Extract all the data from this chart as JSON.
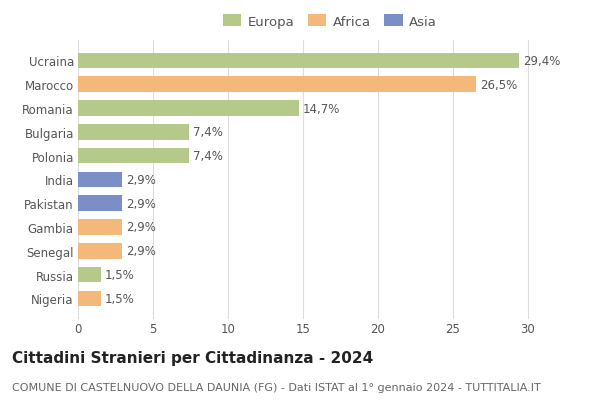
{
  "categories": [
    "Nigeria",
    "Russia",
    "Senegal",
    "Gambia",
    "Pakistan",
    "India",
    "Polonia",
    "Bulgaria",
    "Romania",
    "Marocco",
    "Ucraina"
  ],
  "values": [
    1.5,
    1.5,
    2.9,
    2.9,
    2.9,
    2.9,
    7.4,
    7.4,
    14.7,
    26.5,
    29.4
  ],
  "labels": [
    "1,5%",
    "1,5%",
    "2,9%",
    "2,9%",
    "2,9%",
    "2,9%",
    "7,4%",
    "7,4%",
    "14,7%",
    "26,5%",
    "29,4%"
  ],
  "colors": [
    "#f4b97a",
    "#b5c98a",
    "#f4b97a",
    "#f4b97a",
    "#7b8ec8",
    "#7b8ec8",
    "#b5c98a",
    "#b5c98a",
    "#b5c98a",
    "#f4b97a",
    "#b5c98a"
  ],
  "legend_labels": [
    "Europa",
    "Africa",
    "Asia"
  ],
  "legend_colors": [
    "#b5c98a",
    "#f4b97a",
    "#7b8ec8"
  ],
  "title": "Cittadini Stranieri per Cittadinanza - 2024",
  "subtitle": "COMUNE DI CASTELNUOVO DELLA DAUNIA (FG) - Dati ISTAT al 1° gennaio 2024 - TUTTITALIA.IT",
  "xlim": [
    0,
    32
  ],
  "xticks": [
    0,
    5,
    10,
    15,
    20,
    25,
    30
  ],
  "background_color": "#ffffff",
  "grid_color": "#dddddd",
  "bar_height": 0.65,
  "label_fontsize": 8.5,
  "title_fontsize": 11,
  "subtitle_fontsize": 8,
  "tick_fontsize": 8.5,
  "legend_fontsize": 9.5
}
